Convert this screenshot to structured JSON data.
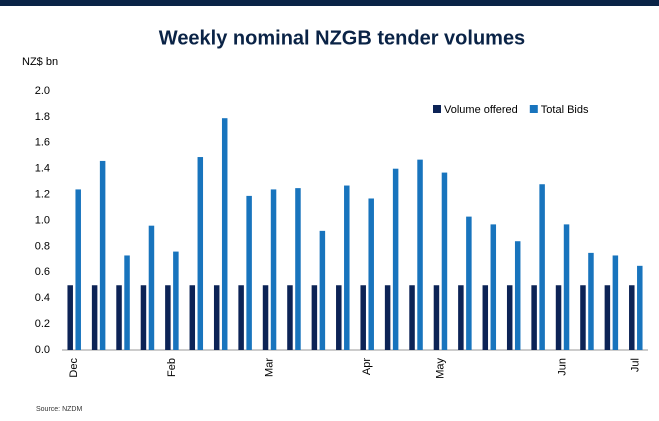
{
  "chart_data": {
    "type": "bar",
    "title": "Weekly nominal NZGB tender volumes",
    "y_label": "NZ$ bn",
    "source": "Source: NZDM",
    "categories": [
      "Dec",
      null,
      null,
      null,
      "Feb",
      null,
      null,
      null,
      "Mar",
      null,
      null,
      null,
      "Apr",
      null,
      null,
      "May",
      null,
      null,
      null,
      null,
      "Jun",
      null,
      null,
      "Jul"
    ],
    "series": [
      {
        "name": "Volume offered",
        "color": "#0c2356",
        "values": [
          0.5,
          0.5,
          0.5,
          0.5,
          0.5,
          0.5,
          0.5,
          0.5,
          0.5,
          0.5,
          0.5,
          0.5,
          0.5,
          0.5,
          0.5,
          0.5,
          0.5,
          0.5,
          0.5,
          0.5,
          0.5,
          0.5,
          0.5,
          0.5
        ]
      },
      {
        "name": "Total Bids",
        "color": "#1874bd",
        "values": [
          1.24,
          1.46,
          0.73,
          0.96,
          0.76,
          1.49,
          1.79,
          1.19,
          1.24,
          1.25,
          0.92,
          1.27,
          1.17,
          1.4,
          1.47,
          1.37,
          1.03,
          0.97,
          0.84,
          1.28,
          0.97,
          0.75,
          0.73,
          0.65
        ]
      }
    ],
    "ylim": [
      0,
      2
    ],
    "yticks": [
      {
        "value": 0,
        "label": "0.0"
      },
      0.2,
      0.4,
      0.6,
      0.8,
      {
        "value": 1,
        "label": "1.0"
      },
      1.2,
      1.4,
      1.6,
      1.8,
      {
        "value": 2,
        "label": "2.0"
      }
    ],
    "grid": false,
    "legend": "upper right"
  }
}
